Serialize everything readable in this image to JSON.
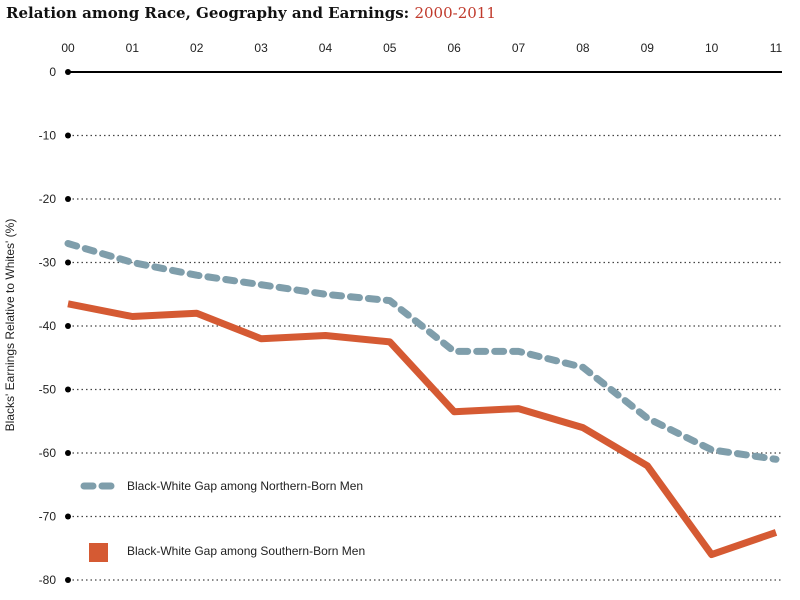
{
  "title": {
    "main": "Relation among Race, Geography and Earnings:",
    "range": "2000-2011"
  },
  "colors": {
    "northern": "#7f9eab",
    "southern": "#d55a33",
    "title_accent": "#c0392b"
  },
  "chart_data": {
    "type": "line",
    "x": [
      "00",
      "01",
      "02",
      "03",
      "04",
      "05",
      "06",
      "07",
      "08",
      "09",
      "10",
      "11"
    ],
    "ylabel": "Blacks' Earnings Relative to Whites' (%)",
    "ylim": [
      -80,
      0
    ],
    "yticks": [
      0,
      -10,
      -20,
      -30,
      -40,
      -50,
      -60,
      -70,
      -80
    ],
    "ytick_labels": [
      "0",
      "-10",
      "-20",
      "-30",
      "-40",
      "-50",
      "-60",
      "-70",
      "-80"
    ],
    "xaxis_position": "top",
    "grid": "dotted horizontal",
    "series": [
      {
        "name": "Black-White Gap among Northern-Born Men",
        "style": "dashed",
        "values": [
          -27,
          -30,
          -32,
          -33.5,
          -35,
          -36,
          -44,
          -44,
          -46.5,
          -54.5,
          -59.5,
          -61
        ]
      },
      {
        "name": "Black-White Gap among Southern-Born Men",
        "style": "solid",
        "values": [
          -36.5,
          -38.5,
          -38,
          -42,
          -41.5,
          -42.5,
          -53.5,
          -53,
          -56,
          -62,
          -76,
          -72.5
        ]
      }
    ],
    "legend_position": "bottom-left"
  }
}
